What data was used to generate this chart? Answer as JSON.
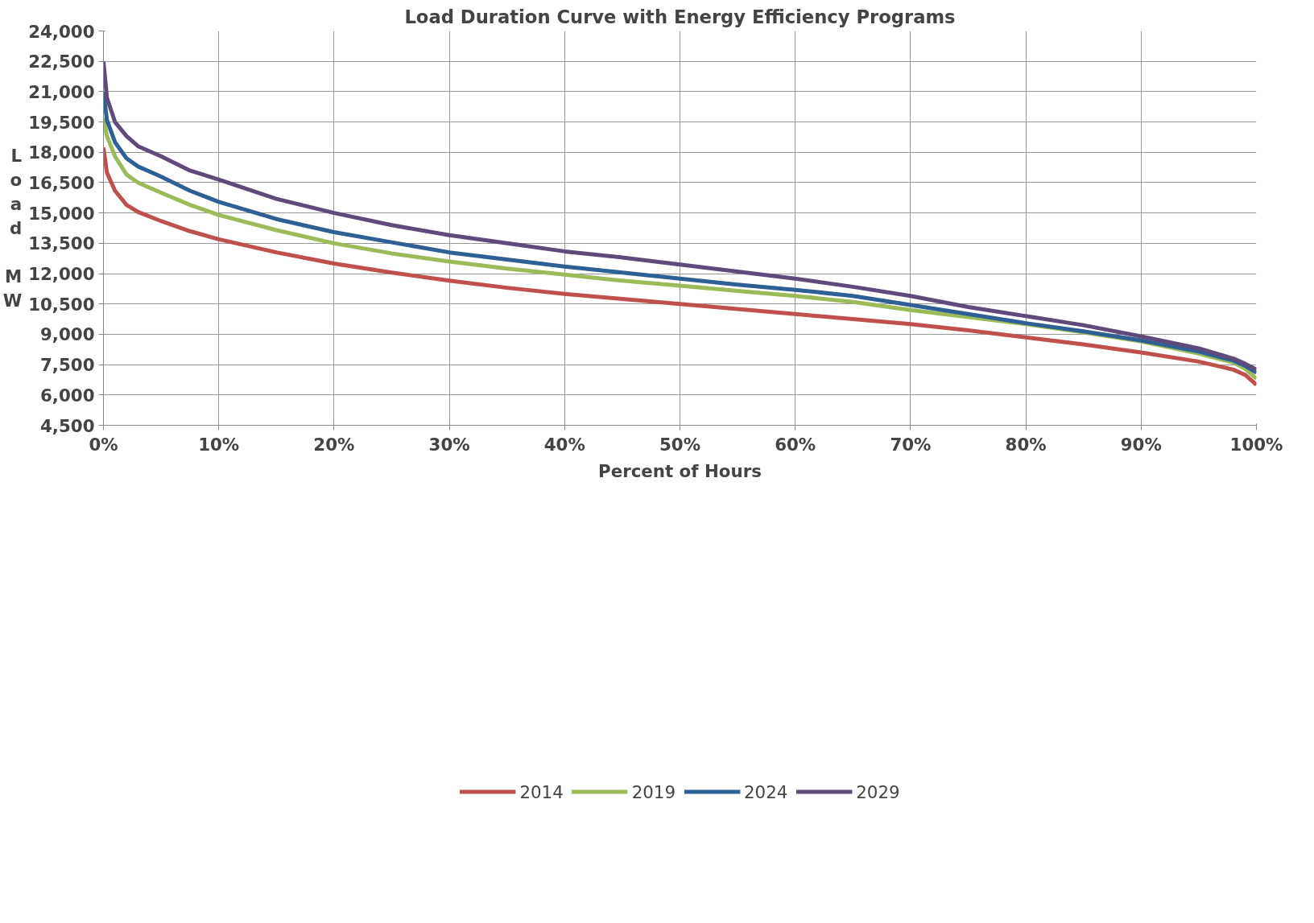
{
  "chart_data": {
    "type": "line",
    "title": "Load Duration Curve with Energy Efficiency Programs",
    "xlabel": "Percent of Hours",
    "ylabel": "Load MW",
    "x": [
      0,
      0.3,
      1,
      2,
      3,
      5,
      7.5,
      10,
      15,
      20,
      25,
      30,
      35,
      40,
      45,
      50,
      55,
      60,
      65,
      70,
      75,
      80,
      85,
      90,
      95,
      98,
      99,
      100
    ],
    "series": [
      {
        "name": "2014",
        "color": "#c0504d",
        "values": [
          18240,
          17000,
          16100,
          15400,
          15050,
          14600,
          14100,
          13700,
          13050,
          12500,
          12050,
          11650,
          11300,
          11000,
          10750,
          10500,
          10250,
          10000,
          9750,
          9500,
          9200,
          8850,
          8500,
          8100,
          7650,
          7250,
          7000,
          6500
        ]
      },
      {
        "name": "2019",
        "color": "#9bbb59",
        "values": [
          19700,
          18800,
          17800,
          16900,
          16500,
          16000,
          15400,
          14900,
          14150,
          13500,
          13000,
          12600,
          12250,
          11950,
          11650,
          11400,
          11150,
          10900,
          10600,
          10200,
          9850,
          9500,
          9100,
          8650,
          8050,
          7600,
          7300,
          6800
        ]
      },
      {
        "name": "2024",
        "color": "#2e5f95",
        "values": [
          21000,
          19600,
          18500,
          17700,
          17300,
          16800,
          16100,
          15550,
          14700,
          14050,
          13550,
          13050,
          12700,
          12350,
          12050,
          11750,
          11450,
          11200,
          10900,
          10450,
          10000,
          9550,
          9150,
          8700,
          8150,
          7700,
          7450,
          7100
        ]
      },
      {
        "name": "2029",
        "color": "#604a7b",
        "values": [
          22500,
          20700,
          19500,
          18800,
          18300,
          17800,
          17100,
          16650,
          15700,
          15000,
          14400,
          13900,
          13500,
          13100,
          12800,
          12450,
          12100,
          11750,
          11350,
          10900,
          10350,
          9900,
          9450,
          8900,
          8300,
          7800,
          7550,
          7250
        ]
      }
    ],
    "xlim": [
      0,
      100
    ],
    "xticks": [
      {
        "value": 0,
        "label": "0%"
      },
      {
        "value": 10,
        "label": "10%"
      },
      {
        "value": 20,
        "label": "20%"
      },
      {
        "value": 30,
        "label": "30%"
      },
      {
        "value": 40,
        "label": "40%"
      },
      {
        "value": 50,
        "label": "50%"
      },
      {
        "value": 60,
        "label": "60%"
      },
      {
        "value": 70,
        "label": "70%"
      },
      {
        "value": 80,
        "label": "80%"
      },
      {
        "value": 90,
        "label": "90%"
      },
      {
        "value": 100,
        "label": "100%"
      }
    ],
    "ylim": [
      4500,
      24000
    ],
    "yticks": [
      {
        "value": 4500,
        "label": "4,500"
      },
      {
        "value": 6000,
        "label": "6,000"
      },
      {
        "value": 7500,
        "label": "7,500"
      },
      {
        "value": 9000,
        "label": "9,000"
      },
      {
        "value": 10500,
        "label": "10,500"
      },
      {
        "value": 12000,
        "label": "12,000"
      },
      {
        "value": 13500,
        "label": "13,500"
      },
      {
        "value": 15000,
        "label": "15,000"
      },
      {
        "value": 16500,
        "label": "16,500"
      },
      {
        "value": 18000,
        "label": "18,000"
      },
      {
        "value": 19500,
        "label": "19,500"
      },
      {
        "value": 21000,
        "label": "21,000"
      },
      {
        "value": 22500,
        "label": "22,500"
      },
      {
        "value": 24000,
        "label": "24,000"
      }
    ],
    "grid": true,
    "legend": "bottom",
    "marker": "none",
    "line_style": "solid"
  }
}
